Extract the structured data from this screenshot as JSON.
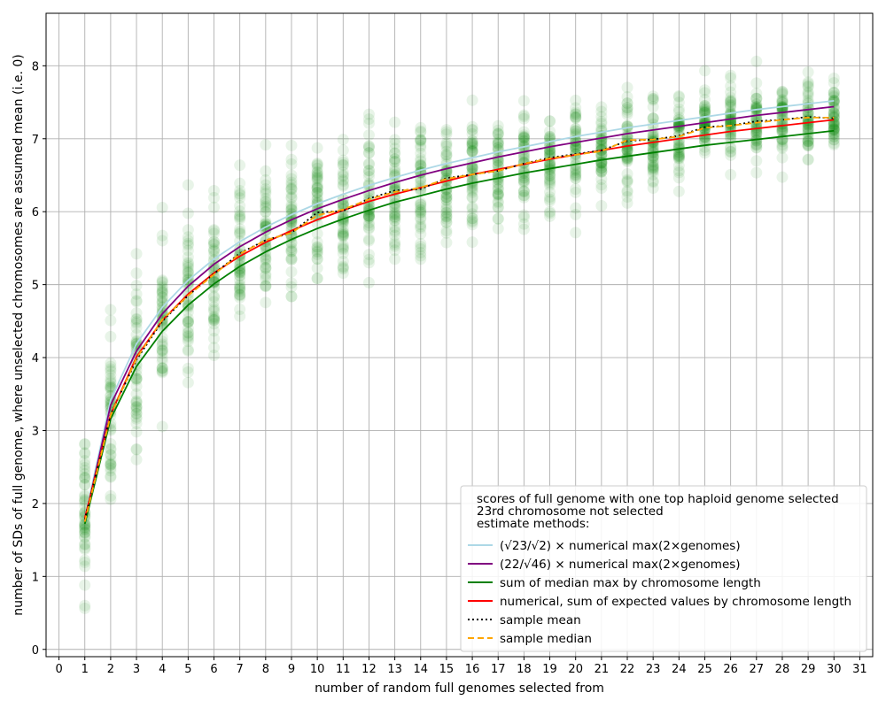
{
  "chart_data": {
    "type": "scatter",
    "xlabel": "number of random full genomes selected from",
    "ylabel": "number of SDs of full genome, where unselected chromosomes are assumed mean (i.e. 0)",
    "xlim": [
      -0.5,
      31.5
    ],
    "ylim": [
      -0.1,
      8.72
    ],
    "x_ticks": [
      0,
      1,
      2,
      3,
      4,
      5,
      6,
      7,
      8,
      9,
      10,
      11,
      12,
      13,
      14,
      15,
      16,
      17,
      18,
      19,
      20,
      21,
      22,
      23,
      24,
      25,
      26,
      27,
      28,
      29,
      30,
      31
    ],
    "y_ticks": [
      0,
      1,
      2,
      3,
      4,
      5,
      6,
      7,
      8
    ],
    "grid": true,
    "legend": {
      "placement": "lower-right",
      "title_lines": [
        "scores of full genome with one top haploid genome selected",
        "23rd chromosome not selected",
        "estimate methods:"
      ]
    },
    "x": [
      1,
      2,
      3,
      4,
      5,
      6,
      7,
      8,
      9,
      10,
      11,
      12,
      13,
      14,
      15,
      16,
      17,
      18,
      19,
      20,
      21,
      22,
      23,
      24,
      25,
      26,
      27,
      28,
      29,
      30
    ],
    "series": [
      {
        "name": "(√23/√2) × numerical max(2×genomes)",
        "color": "#add8e6",
        "style": "solid",
        "values": [
          1.8,
          3.42,
          4.19,
          4.69,
          5.06,
          5.35,
          5.59,
          5.79,
          5.96,
          6.11,
          6.24,
          6.36,
          6.47,
          6.57,
          6.66,
          6.74,
          6.82,
          6.89,
          6.96,
          7.03,
          7.09,
          7.15,
          7.2,
          7.25,
          7.3,
          7.35,
          7.4,
          7.44,
          7.48,
          7.52
        ]
      },
      {
        "name": "(22/√46) × numerical max(2×genomes)",
        "color": "#800080",
        "style": "solid",
        "values": [
          1.76,
          3.35,
          4.09,
          4.6,
          4.98,
          5.28,
          5.52,
          5.72,
          5.89,
          6.04,
          6.17,
          6.29,
          6.4,
          6.5,
          6.59,
          6.67,
          6.75,
          6.82,
          6.89,
          6.95,
          7.01,
          7.07,
          7.12,
          7.17,
          7.22,
          7.27,
          7.32,
          7.36,
          7.4,
          7.44
        ]
      },
      {
        "name": "sum of median max by chromosome length",
        "color": "#008000",
        "style": "solid",
        "values": [
          1.72,
          3.16,
          3.88,
          4.36,
          4.72,
          5.01,
          5.25,
          5.45,
          5.62,
          5.77,
          5.9,
          6.02,
          6.13,
          6.22,
          6.31,
          6.39,
          6.46,
          6.53,
          6.59,
          6.65,
          6.71,
          6.76,
          6.81,
          6.86,
          6.91,
          6.95,
          6.99,
          7.03,
          7.07,
          7.11
        ]
      },
      {
        "name": "numerical, sum of expected values by chromosome length",
        "color": "#ff0000",
        "style": "solid",
        "values": [
          1.8,
          3.22,
          4.01,
          4.51,
          4.87,
          5.16,
          5.39,
          5.58,
          5.74,
          5.89,
          6.02,
          6.14,
          6.24,
          6.33,
          6.42,
          6.51,
          6.58,
          6.65,
          6.72,
          6.78,
          6.84,
          6.9,
          6.95,
          7.0,
          7.05,
          7.1,
          7.14,
          7.18,
          7.22,
          7.26
        ]
      },
      {
        "name": "sample mean",
        "color": "#000000",
        "style": "dotted",
        "values": [
          1.78,
          3.22,
          3.97,
          4.5,
          4.85,
          5.15,
          5.43,
          5.61,
          5.71,
          5.99,
          6.01,
          6.18,
          6.29,
          6.31,
          6.46,
          6.51,
          6.56,
          6.66,
          6.74,
          6.79,
          6.84,
          6.97,
          6.99,
          7.04,
          7.16,
          7.18,
          7.24,
          7.26,
          7.3,
          7.28
        ]
      },
      {
        "name": "sample median",
        "color": "#ffa500",
        "style": "dashed",
        "values": [
          1.75,
          3.21,
          3.99,
          4.52,
          4.85,
          5.14,
          5.42,
          5.61,
          5.71,
          5.95,
          6.03,
          6.17,
          6.27,
          6.33,
          6.45,
          6.51,
          6.56,
          6.66,
          6.73,
          6.78,
          6.83,
          6.98,
          6.99,
          7.03,
          7.15,
          7.18,
          7.22,
          7.26,
          7.29,
          7.29
        ]
      }
    ],
    "scatter": {
      "name": "scores of full genome with one top haploid genome selected",
      "color": "#008000",
      "points_per_x": 50,
      "sample_mean_ref": "sample mean"
    }
  }
}
